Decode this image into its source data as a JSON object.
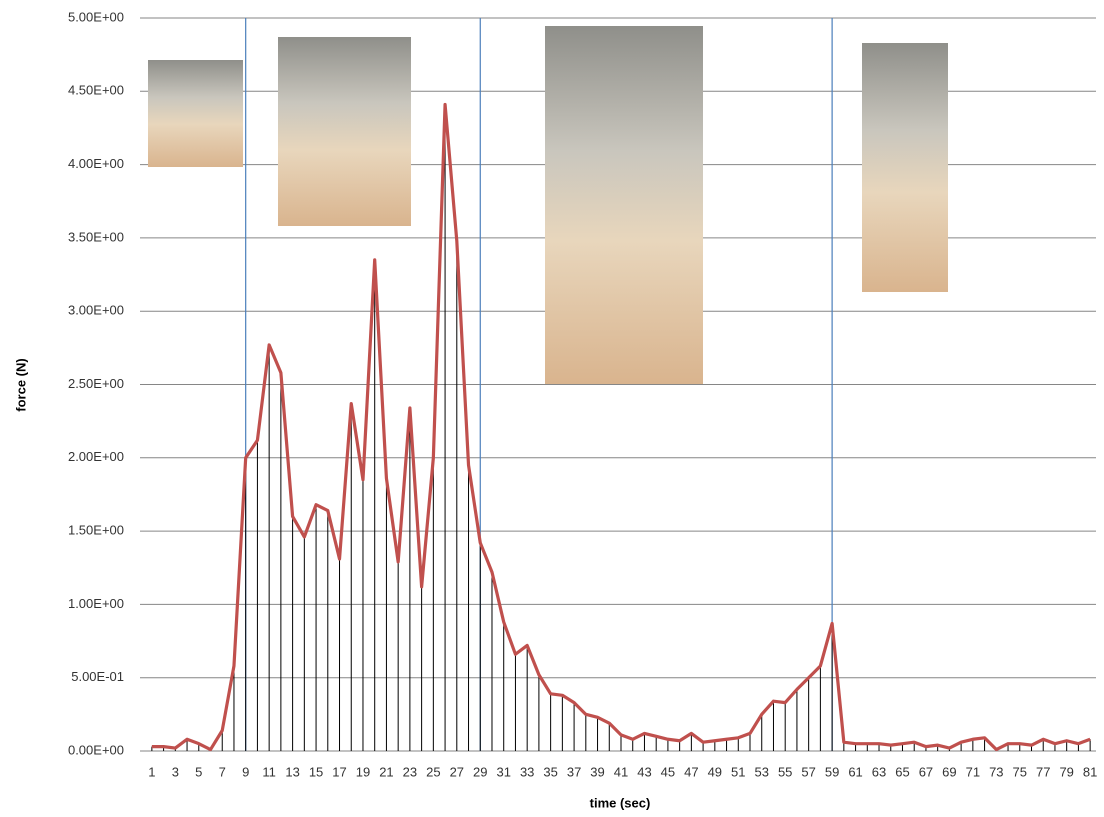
{
  "chart_data": {
    "type": "line",
    "x_label": "time (sec)",
    "y_label": "force (N)",
    "categories": [
      1,
      null,
      3,
      null,
      5,
      null,
      7,
      null,
      9,
      null,
      11,
      null,
      13,
      null,
      15,
      null,
      17,
      null,
      19,
      null,
      21,
      null,
      23,
      null,
      25,
      null,
      27,
      null,
      29,
      null,
      31,
      null,
      33,
      null,
      35,
      null,
      37,
      null,
      39,
      null,
      41,
      null,
      43,
      null,
      45,
      null,
      47,
      null,
      49,
      null,
      51,
      null,
      53,
      null,
      55,
      null,
      57,
      null,
      59,
      null,
      61,
      null,
      63,
      null,
      65,
      null,
      67,
      null,
      69,
      null,
      71,
      null,
      73,
      null,
      75,
      null,
      77,
      null,
      79,
      null,
      81
    ],
    "series": [
      {
        "color": "#c0504d",
        "values": [
          0.03,
          0.03,
          0.02,
          0.08,
          0.05,
          0.01,
          0.14,
          0.58,
          2.0,
          2.12,
          2.77,
          2.58,
          1.6,
          1.46,
          1.68,
          1.64,
          1.31,
          2.37,
          1.85,
          3.35,
          1.86,
          1.29,
          2.34,
          1.12,
          2.0,
          4.41,
          3.48,
          1.95,
          1.42,
          1.22,
          0.88,
          0.66,
          0.72,
          0.52,
          0.39,
          0.38,
          0.33,
          0.25,
          0.23,
          0.19,
          0.11,
          0.08,
          0.12,
          0.1,
          0.08,
          0.07,
          0.12,
          0.06,
          0.07,
          0.08,
          0.09,
          0.12,
          0.25,
          0.34,
          0.33,
          0.42,
          0.5,
          0.58,
          0.87,
          0.06,
          0.05,
          0.05,
          0.05,
          0.04,
          0.05,
          0.06,
          0.03,
          0.04,
          0.02,
          0.06,
          0.08,
          0.09,
          0.01,
          0.05,
          0.05,
          0.04,
          0.08,
          0.05,
          0.07,
          0.05,
          0.08
        ]
      }
    ],
    "drop_lines": true,
    "vlines": [
      9,
      29,
      59
    ],
    "ylim": [
      0,
      5
    ],
    "yticks": [
      {
        "value": 0,
        "label": "0.00E+00"
      },
      {
        "value": 0.5,
        "label": "5.00E-01"
      },
      {
        "value": 1,
        "label": "1.00E+00"
      },
      {
        "value": 1.5,
        "label": "1.50E+00"
      },
      {
        "value": 2,
        "label": "2.00E+00"
      },
      {
        "value": 2.5,
        "label": "2.50E+00"
      },
      {
        "value": 3,
        "label": "3.00E+00"
      },
      {
        "value": 3.5,
        "label": "3.50E+00"
      },
      {
        "value": 4,
        "label": "4.00E+00"
      },
      {
        "value": 4.5,
        "label": "4.50E+00"
      },
      {
        "value": 5,
        "label": "5.00E+00"
      }
    ],
    "grid": true
  }
}
